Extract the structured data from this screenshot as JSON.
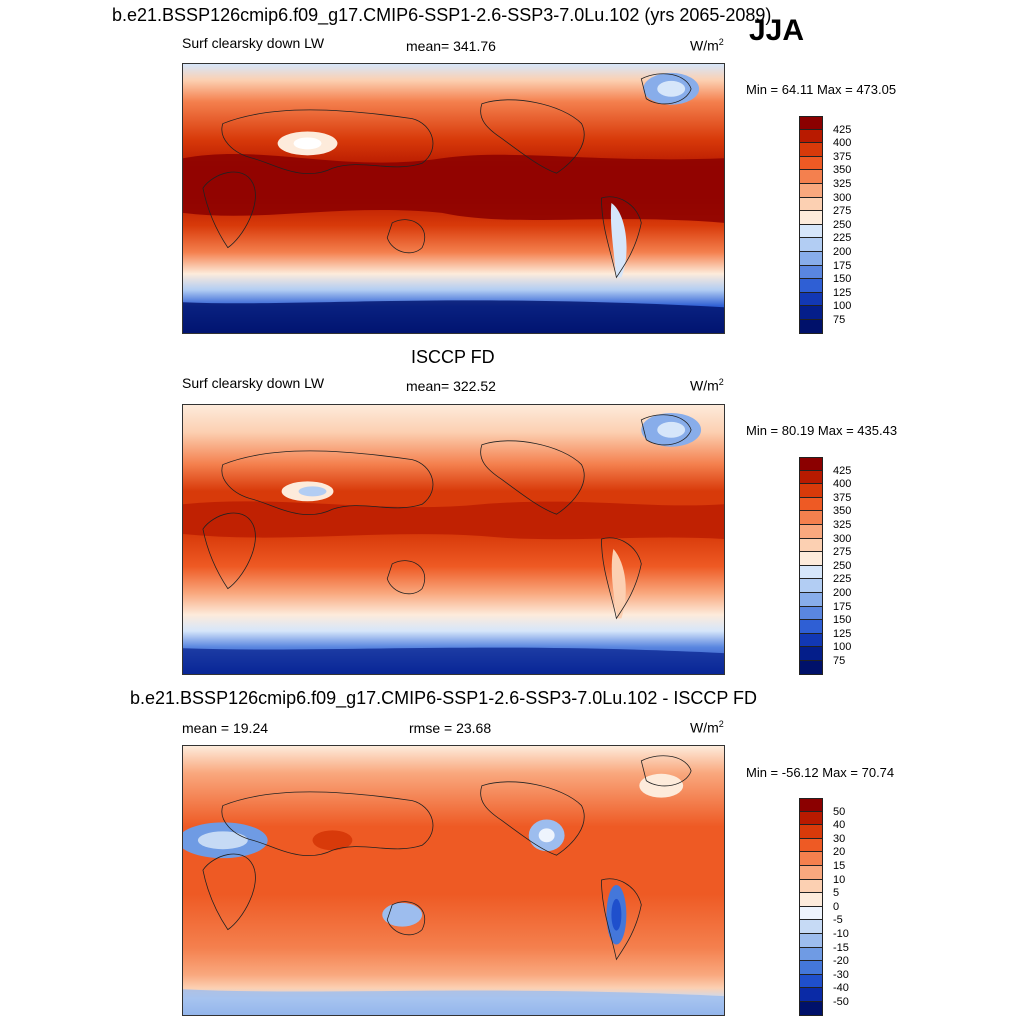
{
  "season": "JJA",
  "units_base": "W/m",
  "units_exp": "2",
  "panels": [
    {
      "title": "b.e21.BSSP126cmip6.f09_g17.CMIP6-SSP1-2.6-SSP3-7.0Lu.102 (yrs 2065-2089)",
      "left_label": "Surf clearsky down LW",
      "center_label": "mean= 341.76",
      "minmax": "Min =  64.11 Max = 473.05",
      "levels": [
        "425",
        "400",
        "375",
        "350",
        "325",
        "300",
        "275",
        "250",
        "225",
        "200",
        "175",
        "150",
        "125",
        "100",
        "75"
      ]
    },
    {
      "title": "ISCCP FD",
      "left_label": "Surf clearsky down LW",
      "center_label": "mean= 322.52",
      "minmax": "Min =  80.19 Max = 435.43",
      "levels": [
        "425",
        "400",
        "375",
        "350",
        "325",
        "300",
        "275",
        "250",
        "225",
        "200",
        "175",
        "150",
        "125",
        "100",
        "75"
      ]
    },
    {
      "title": "b.e21.BSSP126cmip6.f09_g17.CMIP6-SSP1-2.6-SSP3-7.0Lu.102 - ISCCP FD",
      "left_label": "mean =  19.24",
      "center_label": "rmse =  23.68",
      "minmax": "Min = -56.12 Max =  70.74",
      "levels": [
        "50",
        "40",
        "30",
        "20",
        "15",
        "10",
        "5",
        "0",
        "-5",
        "-10",
        "-15",
        "-20",
        "-30",
        "-40",
        "-50"
      ]
    }
  ],
  "colors": {
    "abs_scale": [
      "#8b0000",
      "#b81a00",
      "#d83a0a",
      "#ee5a24",
      "#f4804e",
      "#f9a87e",
      "#fcd0b2",
      "#fdebdb",
      "#d6e6fa",
      "#b2cdf3",
      "#88adea",
      "#5a86e0",
      "#2f5fd4",
      "#1238b4",
      "#041e8a",
      "#00116a"
    ],
    "diff_scale": [
      "#8b0000",
      "#b81a00",
      "#d83a0a",
      "#ee5a24",
      "#f4804e",
      "#f9a87e",
      "#fcd0b2",
      "#fdebdb",
      "#eef4fd",
      "#c6daf5",
      "#9dbdee",
      "#6f9be4",
      "#4477da",
      "#1f4fcc",
      "#0a2aa6",
      "#00116a"
    ]
  }
}
